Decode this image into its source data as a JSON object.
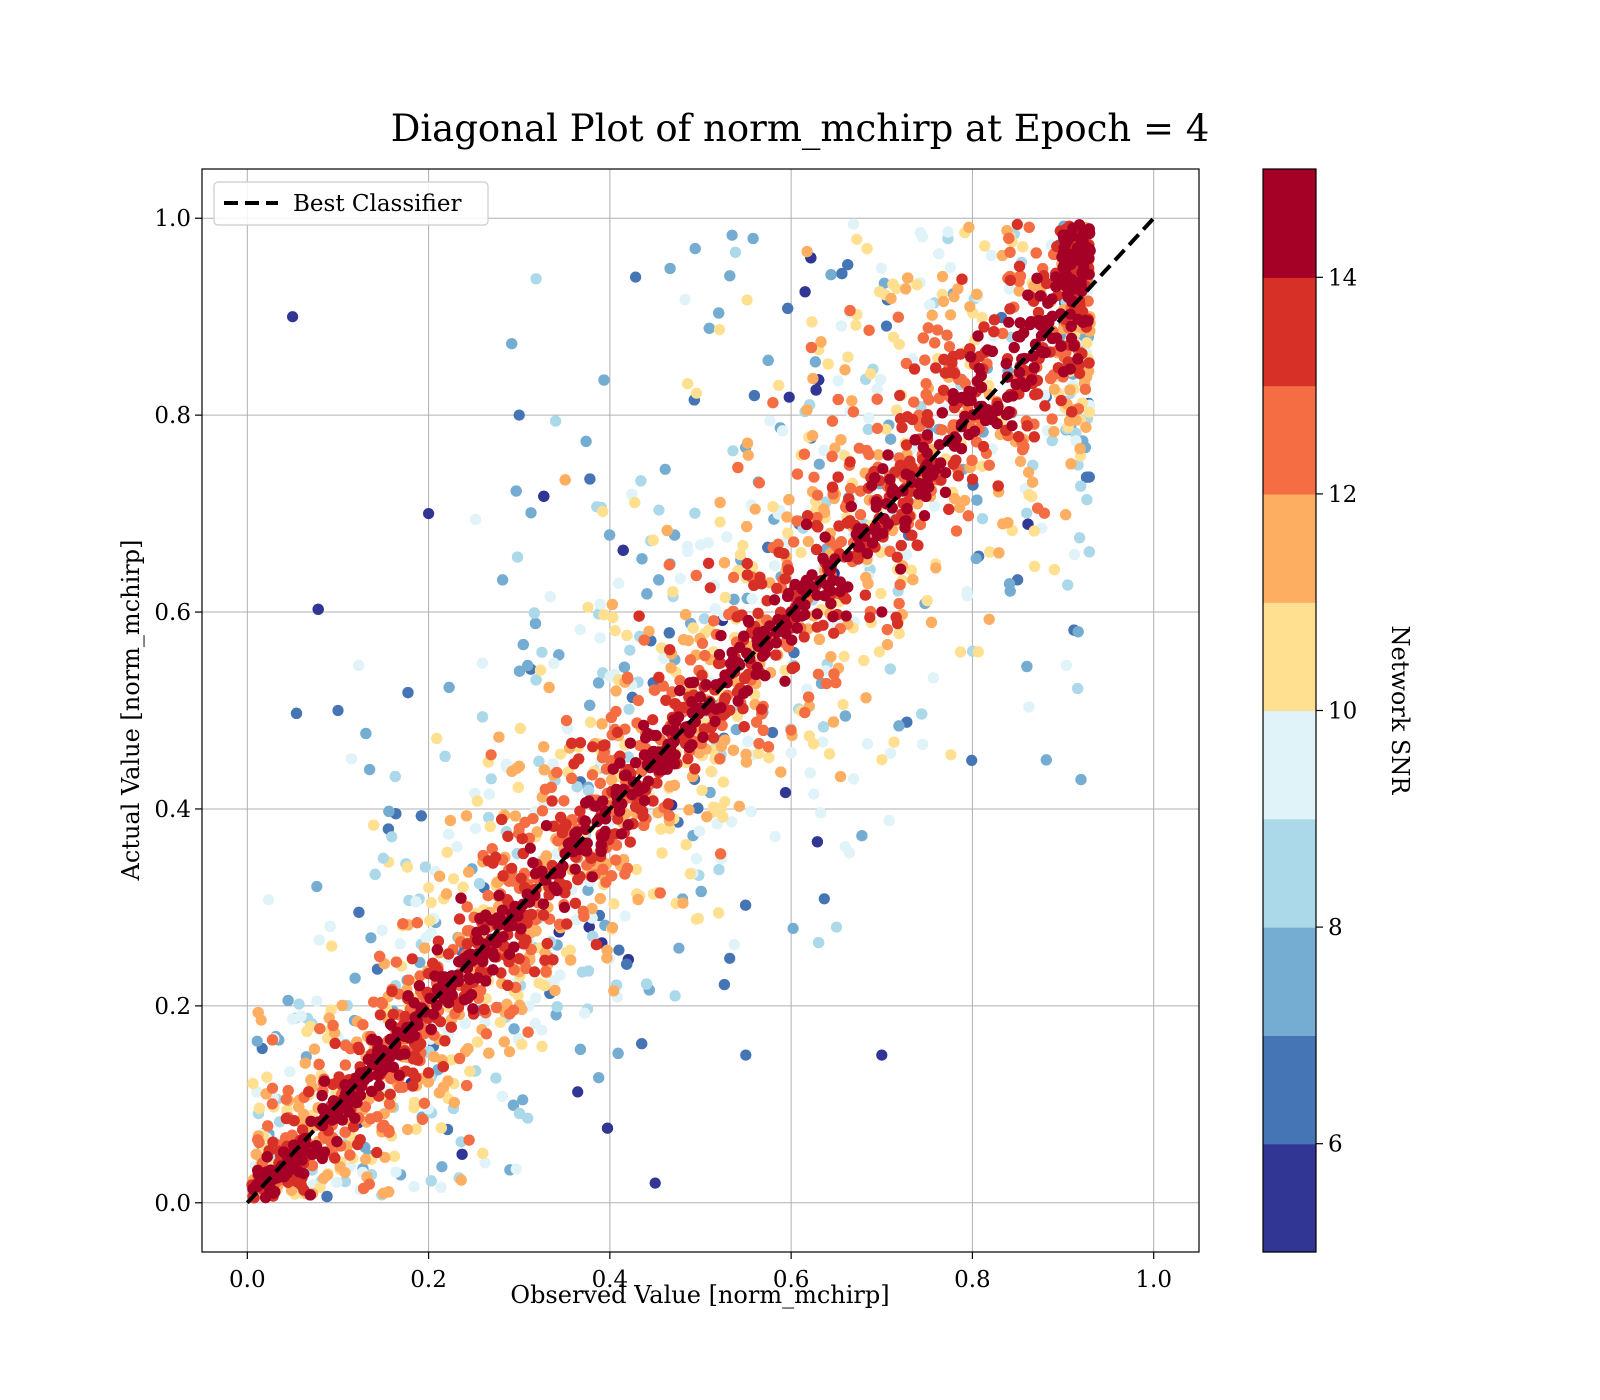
{
  "chart_data": {
    "type": "scatter",
    "title": "Diagonal Plot of norm_mchirp at Epoch = 4",
    "xlabel": "Observed Value [norm_mchirp]",
    "ylabel": "Actual Value [norm_mchirp]",
    "xlim": [
      -0.05,
      1.05
    ],
    "ylim": [
      -0.05,
      1.05
    ],
    "x_ticks": [
      0.0,
      0.2,
      0.4,
      0.6,
      0.8,
      1.0
    ],
    "x_tick_labels": [
      "0.0",
      "0.2",
      "0.4",
      "0.6",
      "0.8",
      "1.0"
    ],
    "y_ticks": [
      0.0,
      0.2,
      0.4,
      0.6,
      0.8,
      1.0
    ],
    "y_tick_labels": [
      "0.0",
      "0.2",
      "0.4",
      "0.6",
      "0.8",
      "1.0"
    ],
    "grid": true,
    "legend": {
      "placement": "top-left",
      "entries": [
        {
          "label": "Best Classifier",
          "style": "dashed",
          "color": "#000000"
        }
      ]
    },
    "reference_line": {
      "label": "Best Classifier",
      "x": [
        0.0,
        1.0
      ],
      "y": [
        0.0,
        1.0
      ]
    },
    "colorbar": {
      "label": "Network SNR",
      "range": [
        5,
        15
      ],
      "tick_values": [
        6,
        8,
        10,
        12,
        14
      ],
      "tick_labels": [
        "6",
        "8",
        "10",
        "12",
        "14"
      ],
      "colors": [
        "#313695",
        "#4575b4",
        "#74add1",
        "#abd9e9",
        "#e0f3f8",
        "#fee090",
        "#fdae61",
        "#f46d43",
        "#d73027",
        "#a50026"
      ]
    },
    "series": [
      {
        "color_value": "Network SNR",
        "band_description": "points near the y=x diagonal have high SNR (~15); scatter widens at lower SNR",
        "sample_points": [
          [
            0.05,
            0.05,
            15
          ],
          [
            0.15,
            0.15,
            15
          ],
          [
            0.3,
            0.3,
            15
          ],
          [
            0.45,
            0.45,
            15
          ],
          [
            0.6,
            0.6,
            15
          ],
          [
            0.75,
            0.75,
            15
          ],
          [
            0.85,
            0.88,
            15
          ],
          [
            0.9,
            0.95,
            14
          ],
          [
            0.35,
            0.3,
            14
          ],
          [
            0.7,
            0.6,
            14
          ],
          [
            0.3,
            0.38,
            12
          ],
          [
            0.6,
            0.48,
            12
          ],
          [
            0.2,
            0.32,
            10
          ],
          [
            0.7,
            0.45,
            10
          ],
          [
            0.15,
            0.35,
            8
          ],
          [
            0.65,
            0.28,
            8
          ],
          [
            0.1,
            0.5,
            6
          ],
          [
            0.3,
            0.8,
            6
          ],
          [
            0.55,
            0.15,
            6
          ],
          [
            0.05,
            0.9,
            5
          ],
          [
            0.2,
            0.7,
            5
          ],
          [
            0.7,
            0.15,
            5
          ],
          [
            0.45,
            0.02,
            5
          ]
        ]
      }
    ]
  }
}
